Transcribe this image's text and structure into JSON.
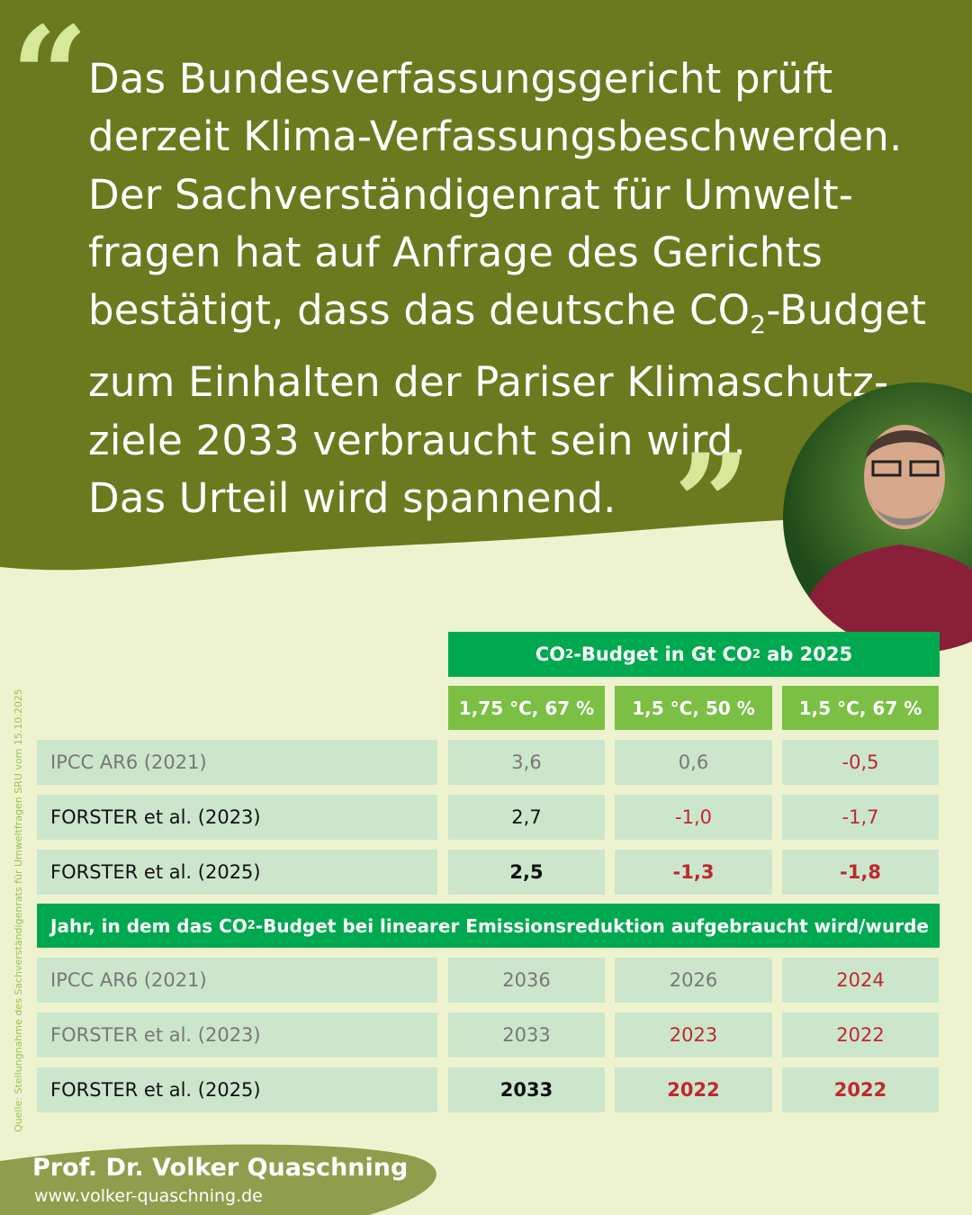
{
  "quote": {
    "lines": [
      "Das Bundesverfassungsgericht prüft",
      "derzeit Klima-Verfassungsbeschwerden.",
      "Der Sachverständigenrat für Umwelt-",
      "fragen hat auf Anfrage des Gerichts"
    ],
    "line5_pre": "bestätigt, dass das deutsche CO",
    "line5_sub": "2",
    "line5_post": "-Budget",
    "lines_after": [
      "zum Einhalten der Pariser Klimaschutz-",
      "ziele 2033 verbraucht sein wird.",
      "Das Urteil wird spannend."
    ],
    "open_mark": "“",
    "close_mark": "”"
  },
  "table": {
    "header1_pre": "CO",
    "header1_sub": "2",
    "header1_mid": "-Budget in Gt CO",
    "header1_sub2": "2",
    "header1_post": " ab 2025",
    "columns": [
      "1,75 °C, 67 %",
      "1,5 °C, 50 %",
      "1,5 °C, 67 %"
    ],
    "budget_rows": [
      {
        "label": "IPCC AR6 (2021)",
        "values": [
          "3,6",
          "0,6",
          "-0,5"
        ]
      },
      {
        "label": "FORSTER et al. (2023)",
        "values": [
          "2,7",
          "-1,0",
          "-1,7"
        ]
      },
      {
        "label": "FORSTER et al. (2025)",
        "values": [
          "2,5",
          "-1,3",
          "-1,8"
        ]
      }
    ],
    "header2_pre": "Jahr, in dem das CO",
    "header2_sub": "2",
    "header2_post": "-Budget bei linearer Emissionsreduktion aufgebraucht wird/wurde",
    "year_rows": [
      {
        "label": "IPCC AR6 (2021)",
        "values": [
          "2036",
          "2026",
          "2024"
        ]
      },
      {
        "label": "FORSTER et al. (2023)",
        "values": [
          "2033",
          "2023",
          "2022"
        ]
      },
      {
        "label": "FORSTER et al. (2025)",
        "values": [
          "2033",
          "2022",
          "2022"
        ]
      }
    ]
  },
  "source": "Quelle: Stellungnahme des Sachverständigenrats für Umweltfragen SRU vom 15.10.2025",
  "footer": {
    "name": "Prof. Dr. Volker Quaschning",
    "url": "www.volker-quaschning.de"
  },
  "colors": {
    "olive": "#6b7a1f",
    "bg": "#eef3cf",
    "green": "#00a94f",
    "light_green": "#7bbf44",
    "cell": "#cce6cc",
    "red": "#c0282d"
  }
}
